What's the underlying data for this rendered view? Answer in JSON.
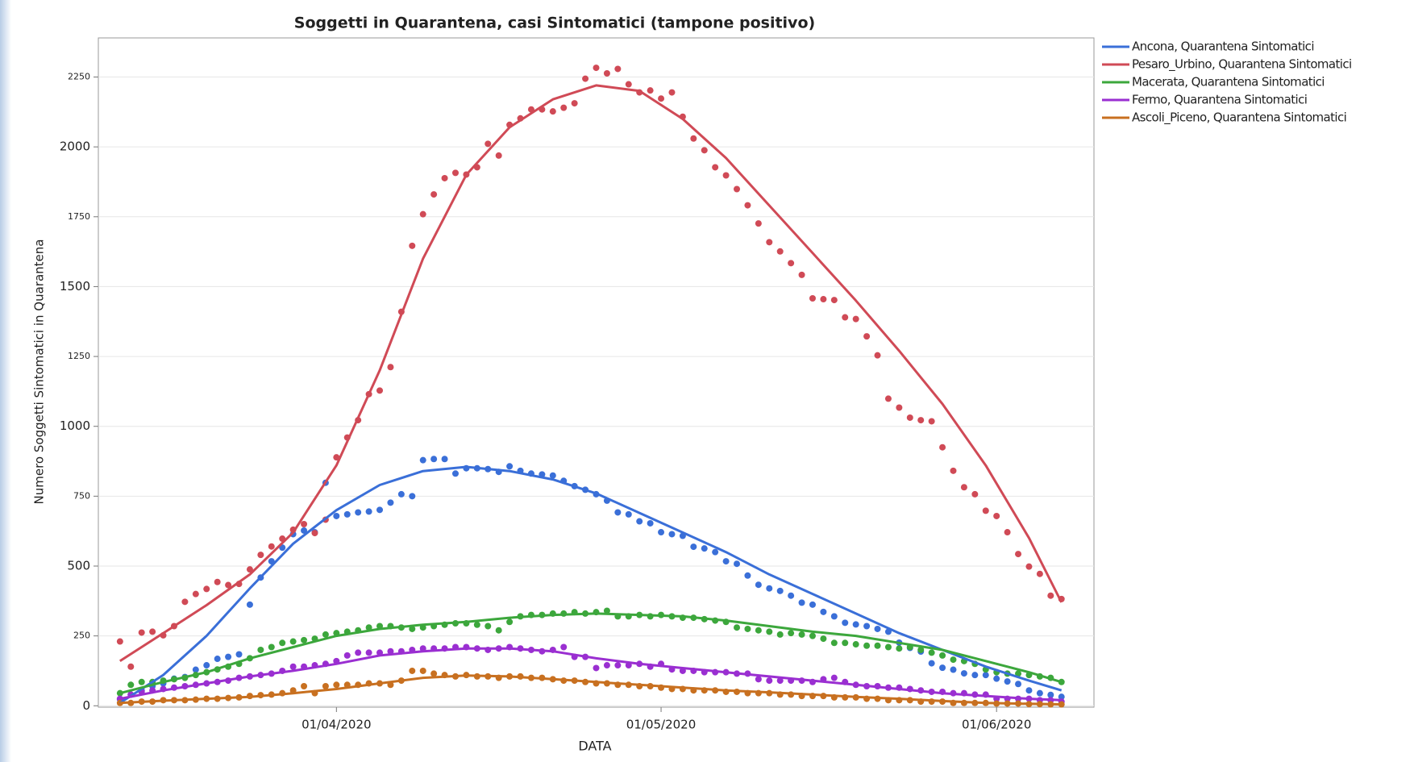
{
  "chart_data": {
    "type": "scatter_trend",
    "title": "Soggetti in Quarantena, casi Sintomatici (tampone positivo)",
    "xlabel": "DATA",
    "ylabel": "Numero Soggetti Sintomatici in Quarantena",
    "x": [
      "12/03/2020",
      "13/03/2020",
      "14/03/2020",
      "15/03/2020",
      "16/03/2020",
      "17/03/2020",
      "18/03/2020",
      "19/03/2020",
      "20/03/2020",
      "21/03/2020",
      "22/03/2020",
      "23/03/2020",
      "24/03/2020",
      "25/03/2020",
      "26/03/2020",
      "27/03/2020",
      "28/03/2020",
      "29/03/2020",
      "30/03/2020",
      "31/03/2020",
      "01/04/2020",
      "02/04/2020",
      "03/04/2020",
      "04/04/2020",
      "05/04/2020",
      "06/04/2020",
      "07/04/2020",
      "08/04/2020",
      "09/04/2020",
      "10/04/2020",
      "11/04/2020",
      "12/04/2020",
      "13/04/2020",
      "14/04/2020",
      "15/04/2020",
      "16/04/2020",
      "17/04/2020",
      "18/04/2020",
      "19/04/2020",
      "20/04/2020",
      "21/04/2020",
      "22/04/2020",
      "23/04/2020",
      "24/04/2020",
      "25/04/2020",
      "26/04/2020",
      "27/04/2020",
      "28/04/2020",
      "29/04/2020",
      "30/04/2020",
      "01/05/2020",
      "02/05/2020",
      "03/05/2020",
      "04/05/2020",
      "05/05/2020",
      "06/05/2020",
      "07/05/2020",
      "08/05/2020",
      "09/05/2020",
      "10/05/2020",
      "11/05/2020",
      "12/05/2020",
      "13/05/2020",
      "14/05/2020",
      "15/05/2020",
      "16/05/2020",
      "17/05/2020",
      "18/05/2020",
      "19/05/2020",
      "20/05/2020",
      "21/05/2020",
      "22/05/2020",
      "23/05/2020",
      "24/05/2020",
      "25/05/2020",
      "26/05/2020",
      "27/05/2020",
      "28/05/2020",
      "29/05/2020",
      "30/05/2020",
      "31/05/2020",
      "01/06/2020",
      "02/06/2020",
      "03/06/2020",
      "04/06/2020",
      "05/06/2020",
      "06/06/2020",
      "07/06/2020"
    ],
    "trend_x": [
      "12/03/2020",
      "16/03/2020",
      "20/03/2020",
      "24/03/2020",
      "28/03/2020",
      "01/04/2020",
      "05/04/2020",
      "09/04/2020",
      "13/04/2020",
      "17/04/2020",
      "21/04/2020",
      "25/04/2020",
      "29/04/2020",
      "03/05/2020",
      "07/05/2020",
      "11/05/2020",
      "15/05/2020",
      "19/05/2020",
      "23/05/2020",
      "27/05/2020",
      "31/05/2020",
      "04/06/2020",
      "07/06/2020"
    ],
    "xticks": [
      "01/04/2020",
      "01/05/2020",
      "01/06/2020"
    ],
    "ylim": [
      -5,
      2390
    ],
    "yticks": [
      0,
      250,
      500,
      750,
      1000,
      1250,
      1500,
      1750,
      2000,
      2250
    ],
    "grid": true,
    "legend": "right",
    "series": [
      {
        "name": "Ancona, Quarantena Sintomatici",
        "color": "#3a6fd8",
        "values": [
          23,
          40,
          55,
          70,
          80,
          97,
          103,
          129,
          145,
          168,
          175,
          184,
          362,
          459,
          517,
          566,
          614,
          627,
          621,
          798,
          679,
          685,
          692,
          695,
          701,
          727,
          757,
          750,
          879,
          883,
          883,
          831,
          850,
          850,
          847,
          837,
          857,
          841,
          831,
          828,
          824,
          805,
          786,
          773,
          757,
          734,
          692,
          685,
          660,
          653,
          621,
          614,
          608,
          569,
          563,
          550,
          517,
          508,
          466,
          433,
          420,
          411,
          394,
          369,
          362,
          336,
          320,
          297,
          291,
          285,
          275,
          265,
          226,
          207,
          194,
          152,
          136,
          129,
          116,
          110,
          110,
          97,
          87,
          78,
          55,
          45,
          39,
          32
        ],
        "trend": [
          10,
          110,
          250,
          420,
          580,
          700,
          790,
          840,
          855,
          840,
          810,
          760,
          690,
          620,
          550,
          470,
          400,
          330,
          260,
          200,
          140,
          90,
          55
        ]
      },
      {
        "name": "Pesaro_Urbino, Quarantena Sintomatici",
        "color": "#d04a56",
        "values": [
          230,
          140,
          262,
          265,
          252,
          285,
          372,
          400,
          418,
          443,
          432,
          436,
          488,
          540,
          570,
          598,
          630,
          650,
          618,
          666,
          889,
          960,
          1022,
          1115,
          1128,
          1212,
          1410,
          1646,
          1759,
          1830,
          1888,
          1907,
          1901,
          1927,
          2011,
          1969,
          2079,
          2102,
          2134,
          2134,
          2127,
          2140,
          2156,
          2244,
          2283,
          2263,
          2279,
          2224,
          2195,
          2202,
          2173,
          2195,
          2108,
          2030,
          1988,
          1927,
          1898,
          1849,
          1791,
          1726,
          1659,
          1626,
          1584,
          1542,
          1458,
          1455,
          1452,
          1390,
          1384,
          1322,
          1254,
          1099,
          1067,
          1031,
          1022,
          1018,
          925,
          841,
          782,
          757,
          698,
          679,
          621,
          543,
          498,
          472,
          394,
          382
        ],
        "trend": [
          160,
          260,
          360,
          470,
          620,
          860,
          1200,
          1600,
          1900,
          2070,
          2170,
          2220,
          2200,
          2100,
          1960,
          1790,
          1620,
          1450,
          1270,
          1080,
          860,
          600,
          370
        ]
      },
      {
        "name": "Macerata, Quarantena Sintomatici",
        "color": "#3ca73c",
        "values": [
          45,
          75,
          85,
          85,
          90,
          95,
          100,
          110,
          120,
          130,
          140,
          150,
          170,
          200,
          210,
          225,
          230,
          235,
          240,
          255,
          260,
          265,
          270,
          280,
          285,
          285,
          280,
          275,
          280,
          285,
          290,
          295,
          295,
          290,
          285,
          270,
          300,
          320,
          325,
          325,
          330,
          330,
          335,
          330,
          335,
          340,
          320,
          320,
          325,
          320,
          325,
          320,
          315,
          315,
          310,
          305,
          300,
          280,
          275,
          270,
          265,
          255,
          260,
          255,
          250,
          240,
          225,
          225,
          220,
          215,
          215,
          210,
          205,
          210,
          200,
          190,
          180,
          165,
          160,
          150,
          130,
          120,
          115,
          115,
          110,
          105,
          100,
          85
        ],
        "trend": [
          45,
          85,
          120,
          170,
          210,
          250,
          275,
          290,
          300,
          315,
          325,
          330,
          325,
          320,
          305,
          285,
          265,
          250,
          225,
          200,
          160,
          120,
          85
        ]
      },
      {
        "name": "Fermo, Quarantena Sintomatici",
        "color": "#9a2fd1",
        "values": [
          25,
          40,
          50,
          55,
          60,
          65,
          70,
          75,
          80,
          85,
          90,
          100,
          105,
          110,
          115,
          125,
          140,
          140,
          145,
          150,
          160,
          180,
          190,
          190,
          190,
          195,
          195,
          200,
          205,
          205,
          205,
          210,
          210,
          205,
          200,
          205,
          210,
          205,
          200,
          195,
          200,
          210,
          175,
          175,
          135,
          145,
          145,
          145,
          150,
          140,
          150,
          130,
          125,
          125,
          120,
          120,
          120,
          115,
          115,
          95,
          90,
          90,
          90,
          90,
          85,
          95,
          100,
          85,
          75,
          70,
          70,
          65,
          65,
          60,
          55,
          50,
          50,
          45,
          45,
          40,
          40,
          25,
          25,
          25,
          25,
          20,
          20,
          15
        ],
        "trend": [
          25,
          55,
          80,
          105,
          125,
          150,
          180,
          195,
          205,
          205,
          195,
          170,
          150,
          135,
          120,
          105,
          90,
          75,
          60,
          45,
          35,
          25,
          20
        ]
      },
      {
        "name": "Ascoli_Piceno, Quarantena Sintomatici",
        "color": "#c87020",
        "values": [
          10,
          10,
          15,
          15,
          20,
          20,
          20,
          22,
          25,
          25,
          28,
          30,
          35,
          38,
          40,
          45,
          55,
          70,
          45,
          70,
          75,
          75,
          75,
          80,
          80,
          75,
          90,
          125,
          125,
          115,
          110,
          105,
          110,
          105,
          105,
          100,
          105,
          105,
          100,
          100,
          95,
          90,
          90,
          85,
          80,
          80,
          75,
          75,
          70,
          70,
          65,
          60,
          60,
          55,
          55,
          55,
          50,
          50,
          45,
          45,
          45,
          40,
          40,
          35,
          35,
          35,
          30,
          30,
          30,
          25,
          25,
          20,
          20,
          20,
          15,
          15,
          15,
          10,
          10,
          10,
          10,
          8,
          8,
          8,
          6,
          6,
          5,
          5
        ],
        "trend": [
          10,
          18,
          25,
          32,
          45,
          60,
          80,
          100,
          108,
          105,
          95,
          85,
          75,
          65,
          55,
          48,
          40,
          32,
          25,
          17,
          10,
          7,
          5
        ]
      }
    ]
  }
}
